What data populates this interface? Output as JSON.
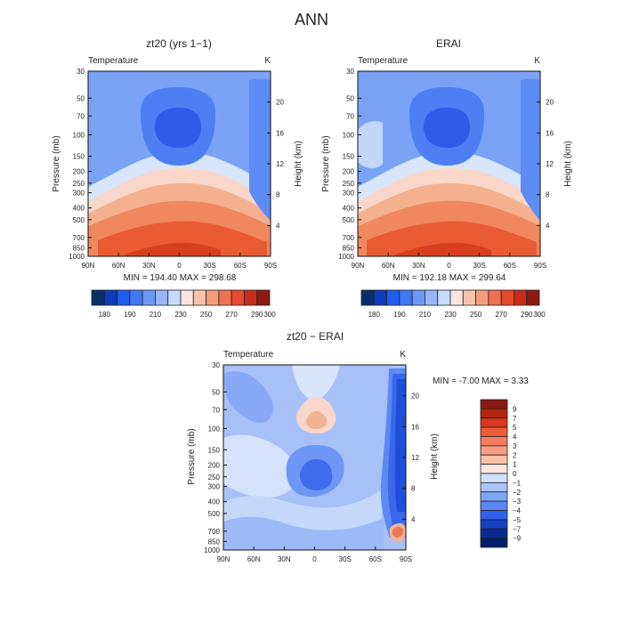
{
  "page_title": "ANN",
  "chart_data": [
    {
      "type": "heatmap",
      "panel": "top-left",
      "title": "zt20 (yrs 1−1)",
      "subtitle": "Temperature",
      "unit": "K",
      "xlabel": "",
      "ylabel": "Pressure (mb)",
      "ylabel_right": "Height (km)",
      "x_ticks": [
        "90N",
        "60N",
        "30N",
        "0",
        "30S",
        "60S",
        "90S"
      ],
      "y_ticks": [
        "30",
        "50",
        "70",
        "100",
        "150",
        "200",
        "250",
        "300",
        "400",
        "500",
        "700",
        "850",
        "1000"
      ],
      "right_ticks": [
        "20",
        "16",
        "12",
        "8",
        "4"
      ],
      "stats_text": "MIN = 194.40  MAX = 298.68",
      "stats": {
        "min": 194.4,
        "max": 298.68
      },
      "colorbar": {
        "orientation": "horizontal",
        "levels": [
          "180",
          "190",
          "210",
          "230",
          "250",
          "270",
          "290",
          "300"
        ],
        "colors": [
          "#08306b",
          "#0c3bbd",
          "#1f5cf0",
          "#3f79f5",
          "#6c98f6",
          "#98b6f8",
          "#c7dcfb",
          "#fbe6df",
          "#f8c3aa",
          "#f49c79",
          "#f07250",
          "#e64a2c",
          "#c92d19",
          "#8b1a10"
        ]
      },
      "contour_levels": [
        180,
        190,
        200,
        210,
        220,
        230,
        240,
        250,
        260,
        270,
        280,
        290,
        300
      ]
    },
    {
      "type": "heatmap",
      "panel": "top-right",
      "title": "ERAI",
      "subtitle": "Temperature",
      "unit": "K",
      "xlabel": "",
      "ylabel": "Pressure (mb)",
      "ylabel_right": "Height (km)",
      "x_ticks": [
        "90N",
        "60N",
        "30N",
        "0",
        "30S",
        "60S",
        "90S"
      ],
      "y_ticks": [
        "30",
        "50",
        "70",
        "100",
        "150",
        "200",
        "250",
        "300",
        "400",
        "500",
        "700",
        "850",
        "1000"
      ],
      "right_ticks": [
        "20",
        "16",
        "12",
        "8",
        "4"
      ],
      "stats_text": "MIN = 192.18  MAX = 299.64",
      "stats": {
        "min": 192.18,
        "max": 299.64
      },
      "colorbar": {
        "orientation": "horizontal",
        "levels": [
          "180",
          "190",
          "210",
          "230",
          "250",
          "270",
          "290",
          "300"
        ],
        "colors": [
          "#08306b",
          "#0c3bbd",
          "#1f5cf0",
          "#3f79f5",
          "#6c98f6",
          "#98b6f8",
          "#c7dcfb",
          "#fbe6df",
          "#f8c3aa",
          "#f49c79",
          "#f07250",
          "#e64a2c",
          "#c92d19",
          "#8b1a10"
        ]
      },
      "contour_levels": [
        180,
        190,
        200,
        210,
        220,
        230,
        240,
        250,
        260,
        270,
        280,
        290,
        300
      ]
    },
    {
      "type": "heatmap",
      "panel": "bottom-center",
      "title": "zt20 − ERAI",
      "subtitle": "Temperature",
      "unit": "K",
      "xlabel": "",
      "ylabel": "Pressure (mb)",
      "ylabel_right": "Height (km)",
      "x_ticks": [
        "90N",
        "60N",
        "30N",
        "0",
        "30S",
        "60S",
        "90S"
      ],
      "y_ticks": [
        "30",
        "50",
        "70",
        "100",
        "150",
        "200",
        "250",
        "300",
        "400",
        "500",
        "700",
        "850",
        "1000"
      ],
      "right_ticks": [
        "20",
        "16",
        "12",
        "8",
        "4"
      ],
      "stats_text": "MIN =  -7.00   MAX =   3.33",
      "stats": {
        "min": -7.0,
        "max": 3.33
      },
      "colorbar": {
        "orientation": "vertical",
        "levels": [
          "9",
          "7",
          "5",
          "4",
          "3",
          "2",
          "1",
          "0",
          "−1",
          "−2",
          "−3",
          "−4",
          "−5",
          "−7",
          "−9"
        ],
        "colors": [
          "#8b1a10",
          "#b3230f",
          "#d9361d",
          "#ef5a37",
          "#f47d5f",
          "#f59d85",
          "#f8c3aa",
          "#fbe6df",
          "#cfe0fb",
          "#a9c4f8",
          "#7ea6f5",
          "#5a87f3",
          "#2e63e9",
          "#153fc0",
          "#0a2a8c",
          "#061e6b"
        ]
      },
      "contour_levels": [
        -9,
        -7,
        -5,
        -4,
        -3,
        -2,
        -1,
        0,
        1,
        2,
        3,
        4,
        5,
        7,
        9
      ]
    }
  ]
}
